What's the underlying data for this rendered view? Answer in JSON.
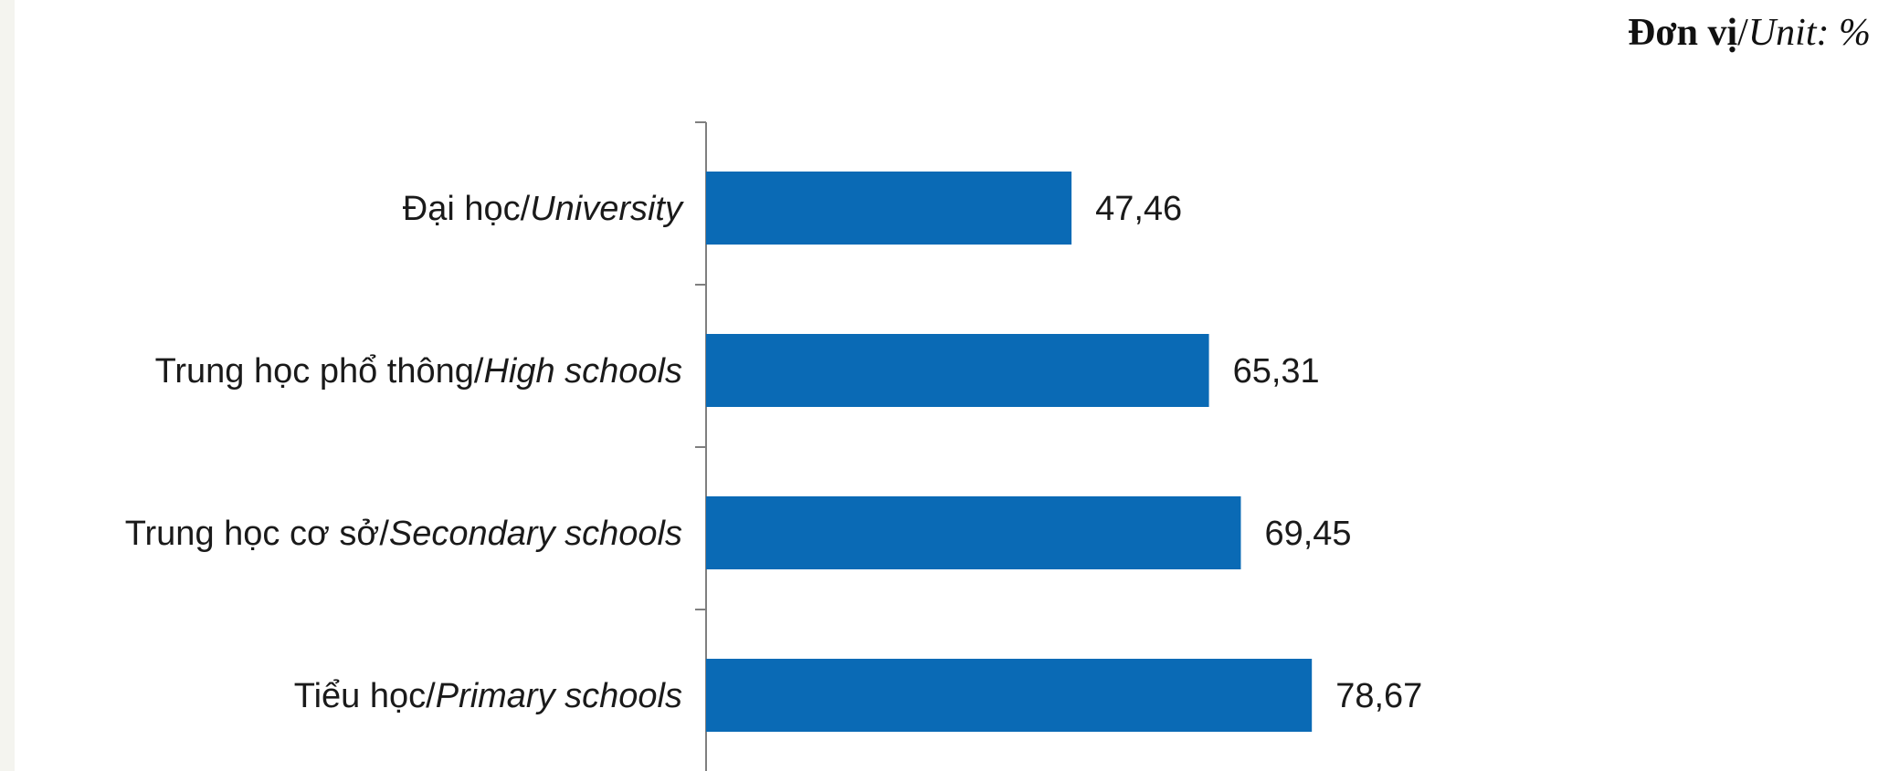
{
  "unit_caption": {
    "bold_part": "Đơn vị",
    "separator": "/",
    "italic_part": "Unit: %"
  },
  "colors": {
    "bar": "#0a6ab5",
    "axis": "#7f7f7f"
  },
  "chart_data": {
    "type": "bar",
    "orientation": "horizontal",
    "categories": [
      {
        "vi": "Đại học/",
        "en": "University"
      },
      {
        "vi": "Trung học phổ thông/",
        "en": "High schools"
      },
      {
        "vi": "Trung học cơ sở/",
        "en": "Secondary schools"
      },
      {
        "vi": "Tiểu học/",
        "en": "Primary schools"
      }
    ],
    "values": [
      47.46,
      65.31,
      69.45,
      78.67
    ],
    "value_labels": [
      "47,46",
      "65,31",
      "69,45",
      "78,67"
    ],
    "xlim": [
      0,
      100
    ],
    "title": "",
    "xlabel": "",
    "ylabel": "",
    "grid": false,
    "legend": "none"
  }
}
